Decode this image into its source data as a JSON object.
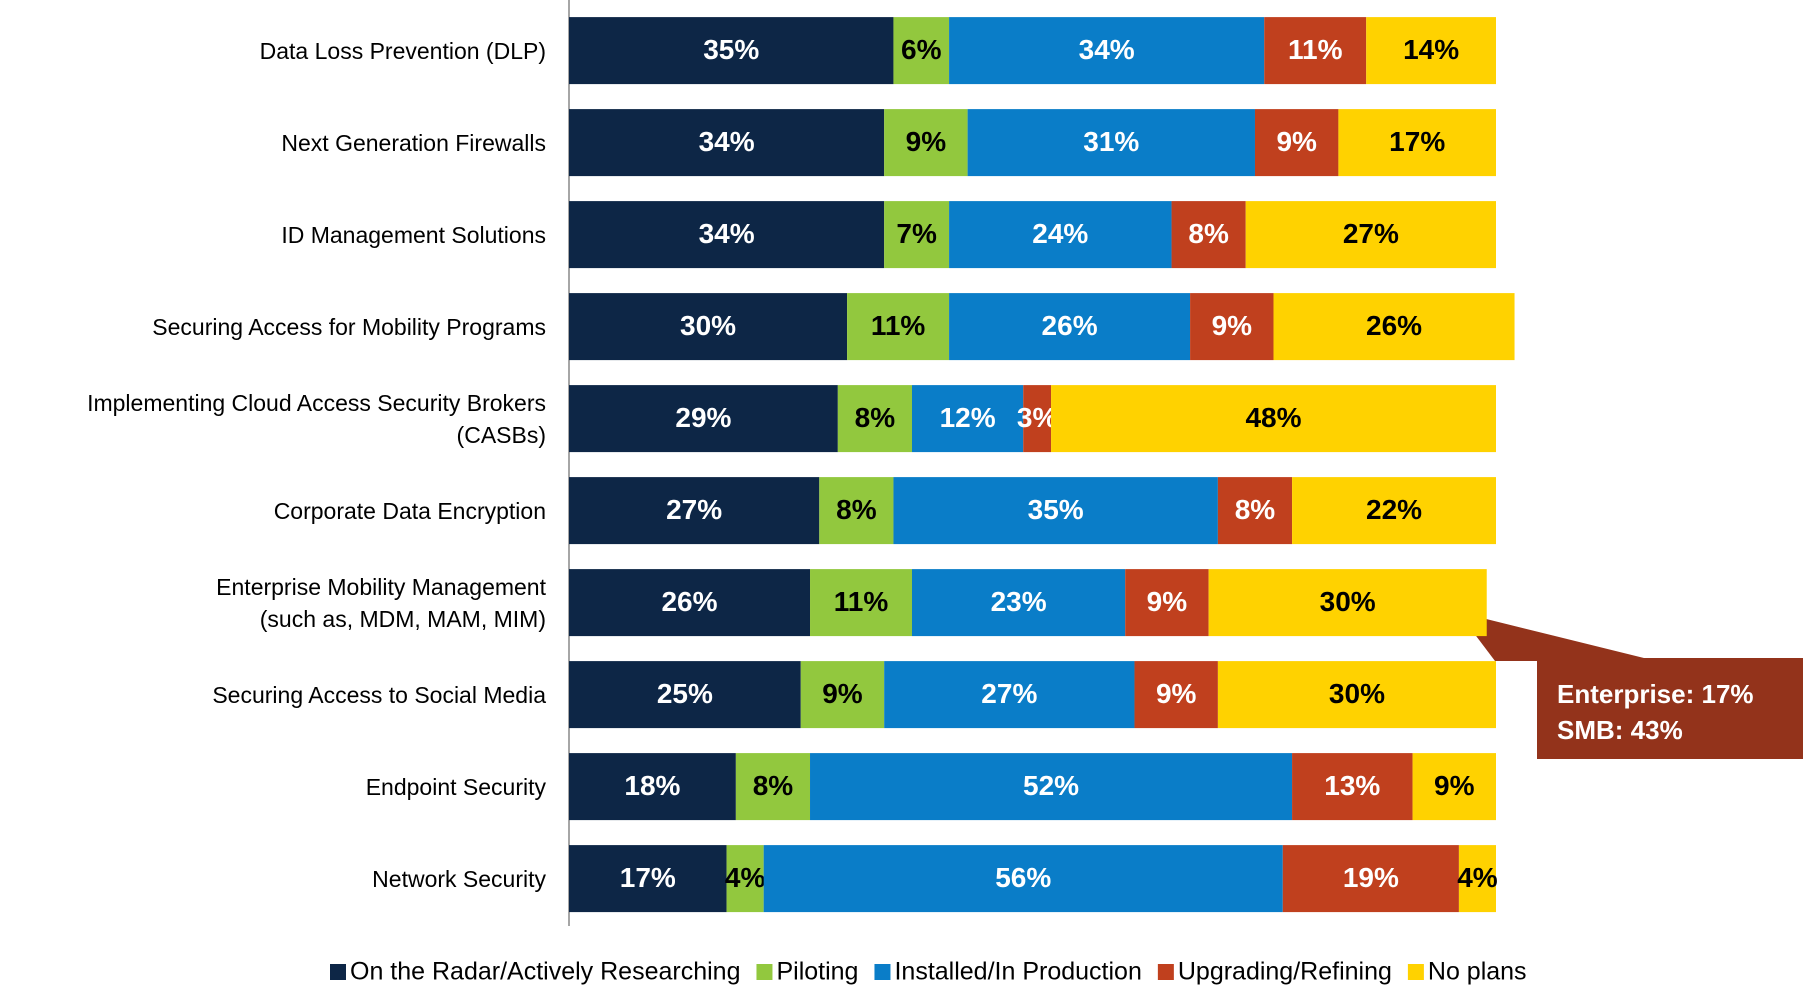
{
  "chart_data": {
    "type": "stacked_bar_horizontal",
    "categories": [
      "Data Loss Prevention (DLP)",
      "Next Generation Firewalls",
      "ID Management Solutions",
      "Securing Access for Mobility Programs",
      "Implementing Cloud Access Security Brokers\n(CASBs)",
      "Corporate Data Encryption",
      "Enterprise Mobility Management\n(such as, MDM, MAM, MIM)",
      "Securing Access to Social Media",
      "Endpoint Security",
      "Network Security"
    ],
    "xlim": [
      0,
      100
    ],
    "series": [
      {
        "name": "On the Radar/Actively Researching",
        "color": "#0d2646",
        "label_color": "#ffffff",
        "values": [
          35,
          34,
          34,
          30,
          29,
          27,
          26,
          25,
          18,
          17
        ],
        "value_labels": [
          "35%",
          "34%",
          "34%",
          "30%",
          "29%",
          "27%",
          "26%",
          "25%",
          "18%",
          "17%"
        ]
      },
      {
        "name": "Piloting",
        "color": "#92c83e",
        "label_color": "#000000",
        "values": [
          6,
          9,
          7,
          11,
          8,
          8,
          11,
          9,
          8,
          4
        ],
        "value_labels": [
          "6%",
          "9%",
          "7%",
          "11%",
          "8%",
          "8%",
          "11%",
          "9%",
          "8%",
          "4%"
        ]
      },
      {
        "name": "Installed/In Production",
        "color": "#0a7dc8",
        "label_color": "#ffffff",
        "values": [
          34,
          31,
          24,
          26,
          12,
          35,
          23,
          27,
          52,
          56
        ],
        "value_labels": [
          "34%",
          "31%",
          "24%",
          "26%",
          "12%",
          "35%",
          "23%",
          "27%",
          "52%",
          "56%"
        ]
      },
      {
        "name": "Upgrading/Refining",
        "color": "#c0401e",
        "label_color": "#ffffff",
        "values": [
          11,
          9,
          8,
          9,
          3,
          8,
          9,
          9,
          13,
          19
        ],
        "value_labels": [
          "11%",
          "9%",
          "8%",
          "9%",
          "3%",
          "8%",
          "9%",
          "9%",
          "13%",
          "19%"
        ]
      },
      {
        "name": "No plans",
        "color": "#ffd200",
        "label_color": "#000000",
        "values": [
          14,
          17,
          27,
          26,
          48,
          22,
          30,
          30,
          9,
          4
        ],
        "value_labels": [
          "14%",
          "17%",
          "27%",
          "26%",
          "48%",
          "22%",
          "30%",
          "30%",
          "9%",
          "4%"
        ]
      }
    ],
    "annotations": [
      "Enterprise: 17%",
      "SMB: 43%"
    ]
  }
}
